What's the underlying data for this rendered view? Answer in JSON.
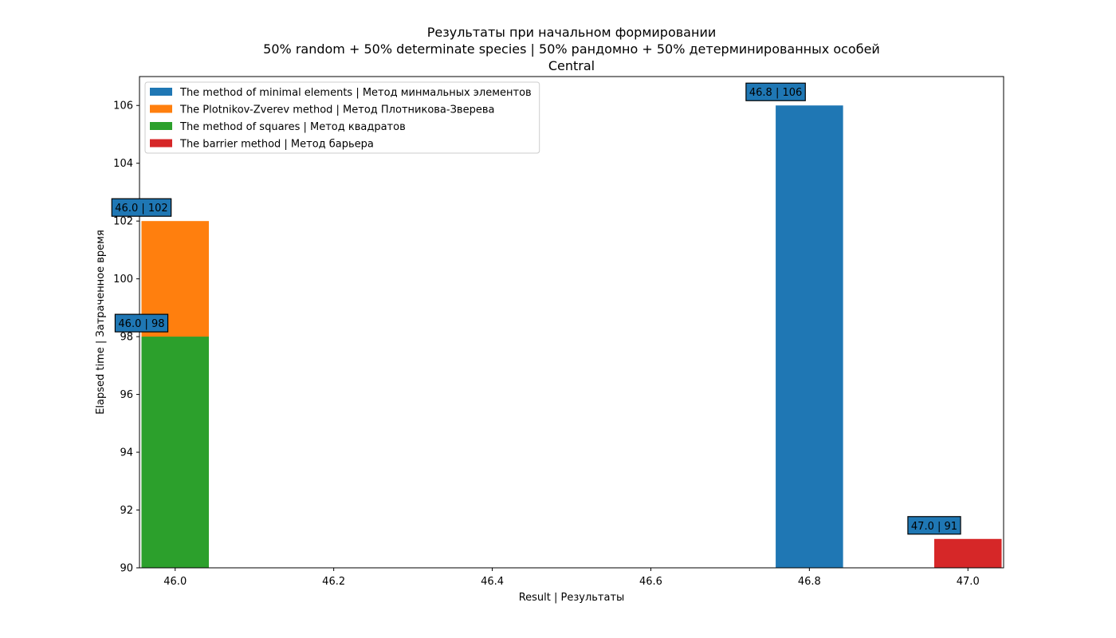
{
  "chart_data": {
    "type": "bar",
    "title": [
      "Результаты при начальном формировании",
      "50% random + 50% determinate species | 50% рандомно + 50% детерминированных особей",
      "Central"
    ],
    "xlabel": "Result | Результаты",
    "ylabel": "Elapsed time | Затраченное время",
    "xlim": [
      45.955,
      47.045
    ],
    "ylim": [
      90,
      107
    ],
    "bar_width": 0.085,
    "x_ticks": [
      {
        "value": 46.0,
        "label": "46.0"
      },
      {
        "value": 46.2,
        "label": "46.2"
      },
      {
        "value": 46.4,
        "label": "46.4"
      },
      {
        "value": 46.6,
        "label": "46.6"
      },
      {
        "value": 46.8,
        "label": "46.8"
      },
      {
        "value": 47.0,
        "label": "47.0"
      }
    ],
    "y_ticks": [
      {
        "value": 90,
        "label": "90"
      },
      {
        "value": 92,
        "label": "92"
      },
      {
        "value": 94,
        "label": "94"
      },
      {
        "value": 96,
        "label": "96"
      },
      {
        "value": 98,
        "label": "98"
      },
      {
        "value": 100,
        "label": "100"
      },
      {
        "value": 102,
        "label": "102"
      },
      {
        "value": 104,
        "label": "104"
      },
      {
        "value": 106,
        "label": "106"
      }
    ],
    "grid": false,
    "legend_position": "top-left",
    "series": [
      {
        "name": "The method of minimal elements | Метод минмальных элементов",
        "color": "#1f77b4",
        "x": 46.8,
        "y": 106,
        "label": "46.8 | 106"
      },
      {
        "name": "The Plotnikov-Zverev method | Метод Плотникова-Зверева",
        "color": "#ff7f0e",
        "x": 46.0,
        "y": 102,
        "label": "46.0 | 102"
      },
      {
        "name": "The method of squares | Метод квадратов",
        "color": "#2ca02c",
        "x": 46.0,
        "y": 98,
        "label": "46.0 | 98"
      },
      {
        "name": "The barrier method | Метод барьера",
        "color": "#d62728",
        "x": 47.0,
        "y": 91,
        "label": "47.0 | 91"
      }
    ],
    "annotation_box_color": "#1f77b4"
  }
}
